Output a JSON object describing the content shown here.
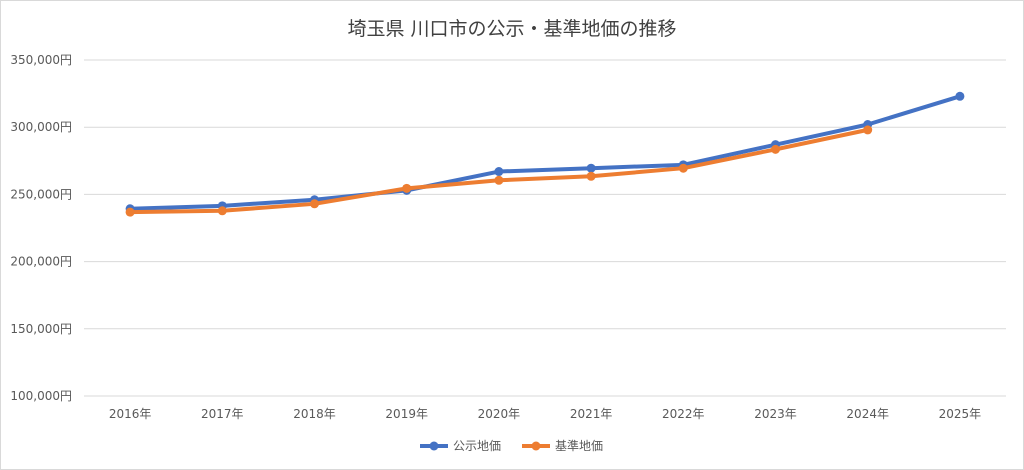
{
  "chart_data": {
    "type": "line",
    "title": "埼玉県 川口市の公示・基準地価の推移",
    "xlabel": "",
    "ylabel": "",
    "categories": [
      "2016年",
      "2017年",
      "2018年",
      "2019年",
      "2020年",
      "2021年",
      "2022年",
      "2023年",
      "2024年",
      "2025年"
    ],
    "y_tick_labels": [
      "100,000円",
      "150,000円",
      "200,000円",
      "250,000円",
      "300,000円",
      "350,000円"
    ],
    "y_ticks": [
      100000,
      150000,
      200000,
      250000,
      300000,
      350000
    ],
    "ylim": [
      100000,
      350000
    ],
    "grid": true,
    "legend_position": "bottom",
    "series": [
      {
        "name": "公示地価",
        "color": "#4472c4",
        "values": [
          239300,
          241500,
          246000,
          253000,
          267000,
          269500,
          272000,
          287000,
          302000,
          323000
        ]
      },
      {
        "name": "基準地価",
        "color": "#ed7d31",
        "values": [
          236800,
          237800,
          243000,
          254500,
          260500,
          263500,
          269500,
          283500,
          298000,
          null
        ]
      }
    ]
  }
}
